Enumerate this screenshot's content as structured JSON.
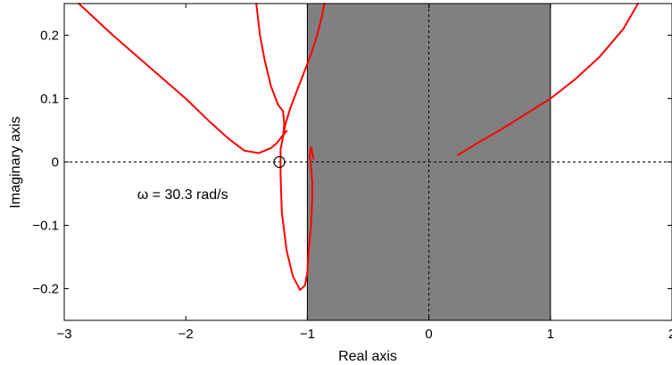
{
  "chart_data": {
    "type": "line",
    "xlabel": "Real axis",
    "ylabel": "Imaginary axis",
    "xlim": [
      -3,
      2
    ],
    "ylim": [
      -0.25,
      0.25
    ],
    "x_ticks": [
      -3,
      -2,
      -1,
      0,
      1,
      2
    ],
    "x_tick_labels": [
      "−3",
      "−2",
      "−1",
      "0",
      "1",
      "2"
    ],
    "y_ticks": [
      0.2,
      0.1,
      0,
      -0.1,
      -0.2
    ],
    "y_tick_labels": [
      "0.2",
      "0.1",
      "0",
      "−0.1",
      "−0.2"
    ],
    "grid": false,
    "shaded_region": {
      "x_range": [
        -1,
        1
      ],
      "color": "#808080"
    },
    "reference_lines": [
      {
        "orientation": "horizontal",
        "value": 0,
        "style": "dotted"
      },
      {
        "orientation": "vertical",
        "value": 0,
        "style": "dotted"
      }
    ],
    "curve_color": "#ff0000",
    "series": [
      {
        "x": [
          -2.88,
          -2.6,
          -2.3,
          -2.0,
          -1.8,
          -1.65,
          -1.52,
          -1.4,
          -1.3,
          -1.25,
          -1.21,
          -1.17
        ],
        "y": [
          0.25,
          0.2,
          0.15,
          0.1,
          0.063,
          0.037,
          0.018,
          0.014,
          0.022,
          0.03,
          0.04,
          0.049
        ]
      },
      {
        "x": [
          -1.42,
          -1.39,
          -1.35,
          -1.3,
          -1.24,
          -1.2,
          -1.19,
          -1.2,
          -1.22,
          -1.22,
          -1.21,
          -1.17,
          -1.12,
          -1.06,
          -1.02,
          -1.0,
          -0.99,
          -0.97,
          -0.96,
          -0.96,
          -0.97,
          -0.98,
          -0.97,
          -0.95
        ],
        "y": [
          0.25,
          0.2,
          0.16,
          0.12,
          0.09,
          0.08,
          0.06,
          0.04,
          0.02,
          -0.02,
          -0.08,
          -0.14,
          -0.18,
          -0.202,
          -0.195,
          -0.175,
          -0.14,
          -0.1,
          -0.06,
          -0.03,
          -0.01,
          0.01,
          0.024,
          0.005
        ]
      },
      {
        "x": [
          -1.2,
          -1.18,
          -1.14,
          -1.09,
          -1.03,
          -0.97,
          -0.92,
          -0.88,
          -0.86
        ],
        "y": [
          0.04,
          0.06,
          0.085,
          0.11,
          0.14,
          0.17,
          0.2,
          0.23,
          0.25
        ]
      },
      {
        "x": [
          0.24,
          0.4,
          0.6,
          0.8,
          1.0,
          1.2,
          1.4,
          1.6,
          1.72
        ],
        "y": [
          0.011,
          0.03,
          0.052,
          0.076,
          0.1,
          0.13,
          0.165,
          0.21,
          0.25
        ]
      }
    ],
    "marker": {
      "x": -1.23,
      "y": 0,
      "shape": "open-circle"
    },
    "annotation": {
      "text": "ω = 30.3 rad/s",
      "x": -2.4,
      "y": -0.05
    }
  }
}
